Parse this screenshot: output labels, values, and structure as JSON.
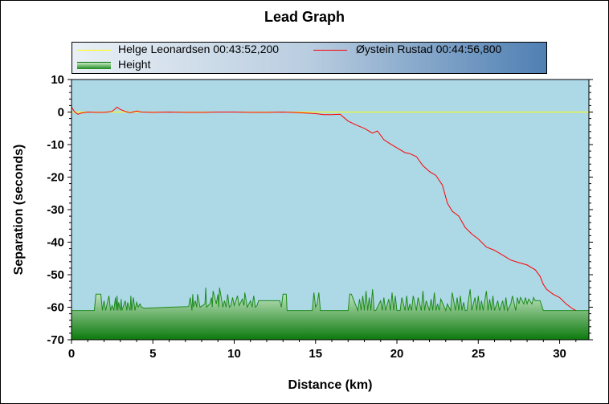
{
  "chart_data": {
    "type": "line",
    "title": "Lead Graph",
    "xlabel": "Distance (km)",
    "ylabel": "Separation (seconds)",
    "xlim": [
      0,
      31.8
    ],
    "ylim": [
      -70,
      10
    ],
    "xticks": [
      0,
      5,
      10,
      15,
      20,
      25,
      30
    ],
    "yticks": [
      10,
      0,
      -10,
      -20,
      -30,
      -40,
      -50,
      -60,
      -70
    ],
    "legend_position": "top",
    "background_color": "#add8e6",
    "series": [
      {
        "name": "Helge Leonardsen 00:43:52,200",
        "color": "#ffff00",
        "x": [
          0,
          31.8
        ],
        "y": [
          0,
          0
        ]
      },
      {
        "name": "Øystein Rustad 00:44:56,800",
        "color": "#ff0000",
        "x": [
          0,
          0.2,
          0.4,
          0.6,
          1.0,
          1.5,
          2.0,
          2.5,
          2.8,
          3.0,
          3.3,
          3.6,
          4.0,
          4.3,
          5.0,
          6.0,
          7.0,
          8.0,
          9.0,
          10.0,
          11.0,
          12.0,
          13.0,
          14.0,
          15.0,
          15.5,
          16.0,
          16.5,
          17.0,
          17.5,
          18.0,
          18.5,
          18.8,
          19.2,
          19.6,
          20.0,
          20.5,
          20.8,
          21.2,
          21.6,
          22.0,
          22.4,
          22.8,
          23.1,
          23.4,
          23.8,
          24.2,
          24.6,
          25.0,
          25.5,
          26.0,
          26.5,
          27.0,
          27.5,
          28.0,
          28.5,
          28.8,
          29.0,
          29.2,
          29.6,
          30.0,
          30.4,
          30.8,
          31.0
        ],
        "y": [
          1.5,
          0,
          -0.7,
          -0.3,
          0,
          -0.1,
          -0.1,
          0.2,
          1.5,
          0.8,
          0.2,
          -0.2,
          0.3,
          0,
          -0.1,
          0,
          -0.1,
          -0.1,
          0,
          0,
          -0.1,
          -0.1,
          0,
          -0.2,
          -0.5,
          -0.8,
          -0.8,
          -0.7,
          -2.8,
          -4.0,
          -5.0,
          -6.5,
          -5.8,
          -8.5,
          -9.8,
          -11.0,
          -12.5,
          -12.8,
          -13.7,
          -16.5,
          -18.3,
          -19.5,
          -22.5,
          -28.0,
          -30.5,
          -32.0,
          -35.5,
          -37.5,
          -39.0,
          -41.5,
          -42.5,
          -44.0,
          -45.5,
          -46.3,
          -47.0,
          -48.5,
          -50.5,
          -53.0,
          -54.5,
          -56.0,
          -57.0,
          -59.0,
          -60.5,
          -61.0
        ]
      }
    ],
    "height_series": {
      "name": "Height",
      "color": "#1d8a1d",
      "x": [
        0,
        1.4,
        1.5,
        1.8,
        1.9,
        2.0,
        2.1,
        2.3,
        2.4,
        2.5,
        2.6,
        2.7,
        2.75,
        2.8,
        2.85,
        2.9,
        3.0,
        3.05,
        3.1,
        3.3,
        3.4,
        3.45,
        3.6,
        3.65,
        3.7,
        3.8,
        3.9,
        4.0,
        4.1,
        4.2,
        4.3,
        4.5,
        6.0,
        7.2,
        7.3,
        7.4,
        7.45,
        7.5,
        7.6,
        7.7,
        7.75,
        7.9,
        8.2,
        8.25,
        8.3,
        8.5,
        8.6,
        8.65,
        8.7,
        8.9,
        9.0,
        9.05,
        9.1,
        9.3,
        9.4,
        9.5,
        9.6,
        9.7,
        9.8,
        9.9,
        10.0,
        10.2,
        10.3,
        10.5,
        10.6,
        10.65,
        10.8,
        11.0,
        11.1,
        11.2,
        11.3,
        11.4,
        11.5,
        11.6,
        12.8,
        12.9,
        13.0,
        13.2,
        13.25,
        13.5,
        14.8,
        14.9,
        15.0,
        15.1,
        15.2,
        15.3,
        17.0,
        17.1,
        17.2,
        17.6,
        17.7,
        17.8,
        17.9,
        18.0,
        18.1,
        18.2,
        18.3,
        18.4,
        18.5,
        18.6,
        18.7,
        19.0,
        19.1,
        19.2,
        19.3,
        19.5,
        19.6,
        19.7,
        19.8,
        19.9,
        20.0,
        20.2,
        20.3,
        20.5,
        20.6,
        20.7,
        20.8,
        20.9,
        21.0,
        21.2,
        21.3,
        21.5,
        21.6,
        21.7,
        21.8,
        22.0,
        22.1,
        22.2,
        22.3,
        22.4,
        22.5,
        22.6,
        22.7,
        23.0,
        23.1,
        23.3,
        23.4,
        23.6,
        23.7,
        23.8,
        23.9,
        24.0,
        24.1,
        24.2,
        24.3,
        24.5,
        24.6,
        24.8,
        24.9,
        25.0,
        25.1,
        25.2,
        25.3,
        25.5,
        25.6,
        25.7,
        25.8,
        25.9,
        26.0,
        26.2,
        26.3,
        26.5,
        26.6,
        26.7,
        26.8,
        27.0,
        27.1,
        27.3,
        27.4,
        27.5,
        27.6,
        27.8,
        27.9,
        28.0,
        28.1,
        28.3,
        28.4,
        28.5,
        28.6,
        28.8,
        29.0,
        29.1,
        29.3,
        29.5,
        31.8
      ],
      "y": [
        -61,
        -61,
        -56,
        -56,
        -61,
        -58,
        -61,
        -56.5,
        -61,
        -59.5,
        -61,
        -57,
        -61,
        -56.5,
        -61,
        -58.5,
        -61,
        -57.5,
        -61,
        -58,
        -61,
        -58.5,
        -61,
        -56.5,
        -61,
        -57,
        -61,
        -58.5,
        -60,
        -59,
        -60,
        -60.3,
        -60,
        -59.8,
        -57,
        -61,
        -56,
        -60,
        -58,
        -60,
        -56,
        -60,
        -59,
        -54,
        -60,
        -59,
        -57,
        -60,
        -55,
        -59,
        -56,
        -60,
        -54,
        -60,
        -58,
        -60,
        -56,
        -60,
        -59.5,
        -57,
        -59.5,
        -56.5,
        -59.5,
        -57.5,
        -59.5,
        -55.5,
        -60,
        -58,
        -60,
        -56.5,
        -60,
        -59.5,
        -58,
        -58,
        -58,
        -60,
        -56,
        -56,
        -61,
        -61,
        -61,
        -55.5,
        -60,
        -59,
        -55.5,
        -61,
        -61,
        -56,
        -56,
        -61,
        -57.5,
        -61,
        -56.5,
        -61,
        -55,
        -61,
        -57,
        -61,
        -54.5,
        -61,
        -61,
        -58,
        -61,
        -57,
        -61,
        -57.5,
        -61,
        -55.5,
        -61,
        -56.5,
        -61,
        -61,
        -57,
        -61,
        -56.5,
        -61,
        -59,
        -61,
        -56.5,
        -61,
        -57,
        -61,
        -55,
        -61,
        -58,
        -61,
        -57.5,
        -61,
        -55.5,
        -61,
        -59,
        -61,
        -57.5,
        -61,
        -59,
        -61,
        -55.5,
        -61,
        -57,
        -61,
        -56.5,
        -61,
        -58.5,
        -61,
        -61,
        -54.5,
        -61,
        -57,
        -61,
        -56.5,
        -61,
        -58,
        -61,
        -55,
        -61,
        -57.5,
        -61,
        -56.5,
        -61,
        -58,
        -61,
        -58,
        -61,
        -57,
        -61,
        -59,
        -56.5,
        -61,
        -57,
        -59,
        -57,
        -59,
        -57,
        -59,
        -57.5,
        -59,
        -57,
        -58,
        -58,
        -58,
        -61,
        -61,
        -61,
        -61,
        -61
      ]
    }
  }
}
